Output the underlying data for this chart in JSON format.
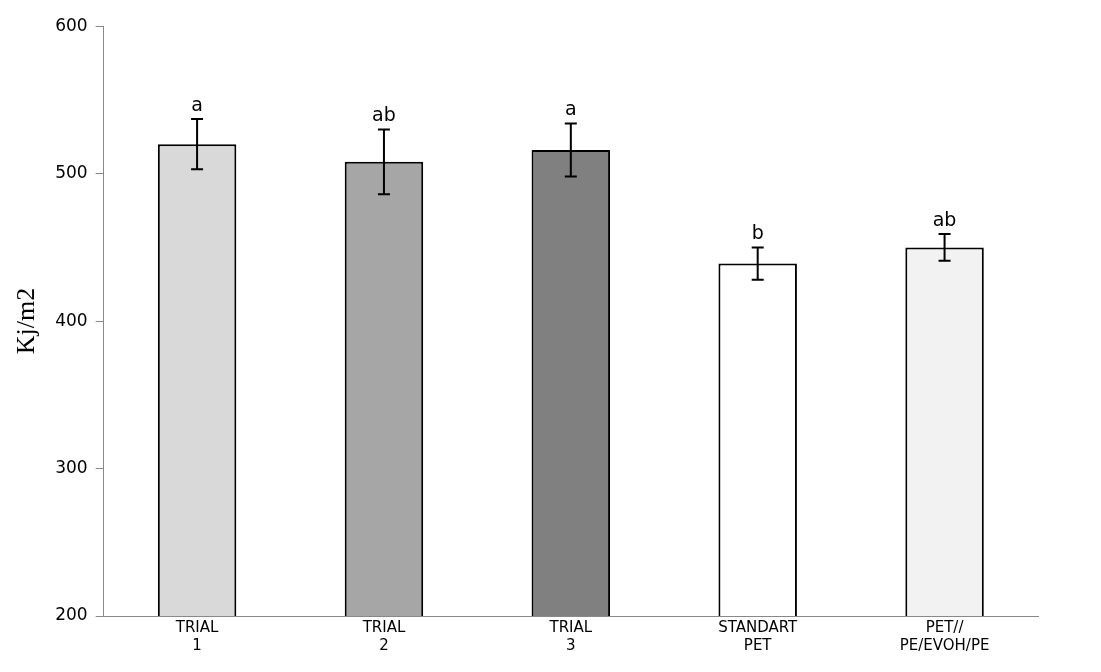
{
  "chart_data": {
    "type": "bar",
    "ylabel": "Kj/m2",
    "categories": [
      "TRIAL 1",
      "TRIAL 2",
      "TRIAL 3",
      "STANDART PET",
      "PET// PE/EVOH/PE"
    ],
    "values": [
      520,
      508,
      516,
      439,
      450
    ],
    "colors": [
      "#d9d9d9",
      "#a6a6a6",
      "#808080",
      "#ffffff",
      "#f2f2f2"
    ],
    "errors": [
      17,
      22,
      18,
      11,
      9
    ],
    "ylim": [
      200,
      600
    ],
    "yticks": [
      200,
      300,
      400,
      500,
      600
    ],
    "grid": false,
    "legend": false,
    "annotations": [
      {
        "text": "a",
        "x": "TRIAL 1",
        "y": 537
      },
      {
        "text": "ab",
        "x": "TRIAL 2",
        "y": 530
      },
      {
        "text": "a",
        "x": "TRIAL 3",
        "y": 534
      },
      {
        "text": "b",
        "x": "STANDART PET",
        "y": 450
      },
      {
        "text": "ab",
        "x": "PET// PE/EVOH/PE",
        "y": 459
      }
    ]
  }
}
